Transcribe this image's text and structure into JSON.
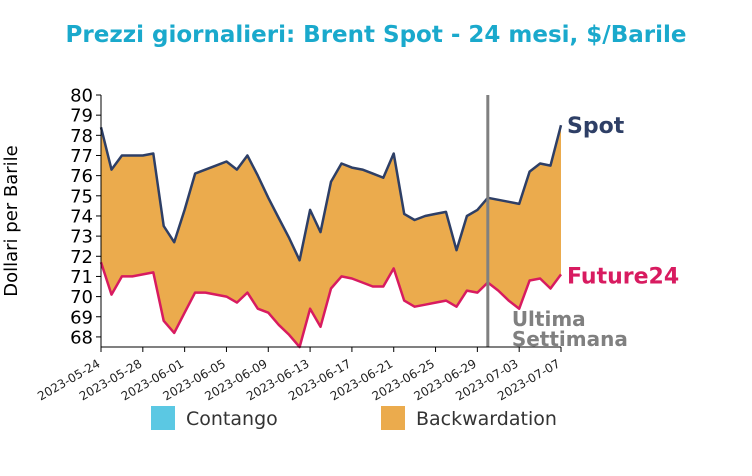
{
  "chart_data": {
    "type": "area",
    "title": "Prezzi giornalieri: Brent Spot - 24 mesi, $/Barile",
    "ylabel": "Dollari per Barile",
    "xlabel": "",
    "ylim": [
      67.5,
      80
    ],
    "y_ticks": [
      68,
      69,
      70,
      71,
      72,
      73,
      74,
      75,
      76,
      77,
      78,
      79,
      80
    ],
    "x_ticks": [
      "2023-05-24",
      "2023-05-28",
      "2023-06-01",
      "2023-06-05",
      "2023-06-09",
      "2023-06-13",
      "2023-06-17",
      "2023-06-21",
      "2023-06-25",
      "2023-06-29",
      "2023-07-03",
      "2023-07-07"
    ],
    "x_range": [
      "2023-05-24",
      "2023-07-07"
    ],
    "series": [
      {
        "name": "Spot",
        "color": "#2e3f66",
        "x": [
          "2023-05-24",
          "2023-05-25",
          "2023-05-26",
          "2023-05-27",
          "2023-05-28",
          "2023-05-29",
          "2023-05-30",
          "2023-05-31",
          "2023-06-01",
          "2023-06-02",
          "2023-06-03",
          "2023-06-04",
          "2023-06-05",
          "2023-06-06",
          "2023-06-07",
          "2023-06-08",
          "2023-06-09",
          "2023-06-10",
          "2023-06-11",
          "2023-06-12",
          "2023-06-13",
          "2023-06-14",
          "2023-06-15",
          "2023-06-16",
          "2023-06-17",
          "2023-06-18",
          "2023-06-19",
          "2023-06-20",
          "2023-06-21",
          "2023-06-22",
          "2023-06-23",
          "2023-06-24",
          "2023-06-25",
          "2023-06-26",
          "2023-06-27",
          "2023-06-28",
          "2023-06-29",
          "2023-06-30",
          "2023-07-01",
          "2023-07-02",
          "2023-07-03",
          "2023-07-04",
          "2023-07-05",
          "2023-07-06",
          "2023-07-07"
        ],
        "values": [
          78.4,
          76.3,
          77.0,
          77.0,
          77.0,
          77.1,
          73.5,
          72.7,
          74.3,
          76.1,
          76.3,
          76.5,
          76.7,
          76.3,
          77.0,
          76.0,
          74.9,
          73.9,
          72.9,
          71.8,
          74.3,
          73.2,
          75.7,
          76.6,
          76.4,
          76.3,
          76.1,
          75.9,
          77.1,
          74.1,
          73.8,
          74.0,
          74.1,
          74.2,
          72.3,
          74.0,
          74.3,
          74.9,
          74.8,
          74.7,
          74.6,
          76.2,
          76.6,
          76.5,
          78.5
        ]
      },
      {
        "name": "Future24",
        "color": "#d81b60",
        "x": [
          "2023-05-24",
          "2023-05-25",
          "2023-05-26",
          "2023-05-27",
          "2023-05-28",
          "2023-05-29",
          "2023-05-30",
          "2023-05-31",
          "2023-06-01",
          "2023-06-02",
          "2023-06-03",
          "2023-06-04",
          "2023-06-05",
          "2023-06-06",
          "2023-06-07",
          "2023-06-08",
          "2023-06-09",
          "2023-06-10",
          "2023-06-11",
          "2023-06-12",
          "2023-06-13",
          "2023-06-14",
          "2023-06-15",
          "2023-06-16",
          "2023-06-17",
          "2023-06-18",
          "2023-06-19",
          "2023-06-20",
          "2023-06-21",
          "2023-06-22",
          "2023-06-23",
          "2023-06-24",
          "2023-06-25",
          "2023-06-26",
          "2023-06-27",
          "2023-06-28",
          "2023-06-29",
          "2023-06-30",
          "2023-07-01",
          "2023-07-02",
          "2023-07-03",
          "2023-07-04",
          "2023-07-05",
          "2023-07-06",
          "2023-07-07"
        ],
        "values": [
          71.7,
          70.1,
          71.0,
          71.0,
          71.1,
          71.2,
          68.8,
          68.2,
          69.2,
          70.2,
          70.2,
          70.1,
          70.0,
          69.7,
          70.2,
          69.4,
          69.2,
          68.6,
          68.1,
          67.5,
          69.4,
          68.5,
          70.4,
          71.0,
          70.9,
          70.7,
          70.5,
          70.5,
          71.4,
          69.8,
          69.5,
          69.6,
          69.7,
          69.8,
          69.5,
          70.3,
          70.2,
          70.7,
          70.3,
          69.8,
          69.4,
          70.8,
          70.9,
          70.4,
          71.1
        ]
      }
    ],
    "fill": {
      "contango_label": "Contango",
      "contango_color": "#5bc8e3",
      "backwardation_label": "Backwardation",
      "backwardation_color": "#ebab4d"
    },
    "annotation": {
      "x": "2023-06-30",
      "line1": "Ultima",
      "line2": "Settimana",
      "color": "#808080"
    },
    "legend_position": "bottom",
    "grid": false
  }
}
